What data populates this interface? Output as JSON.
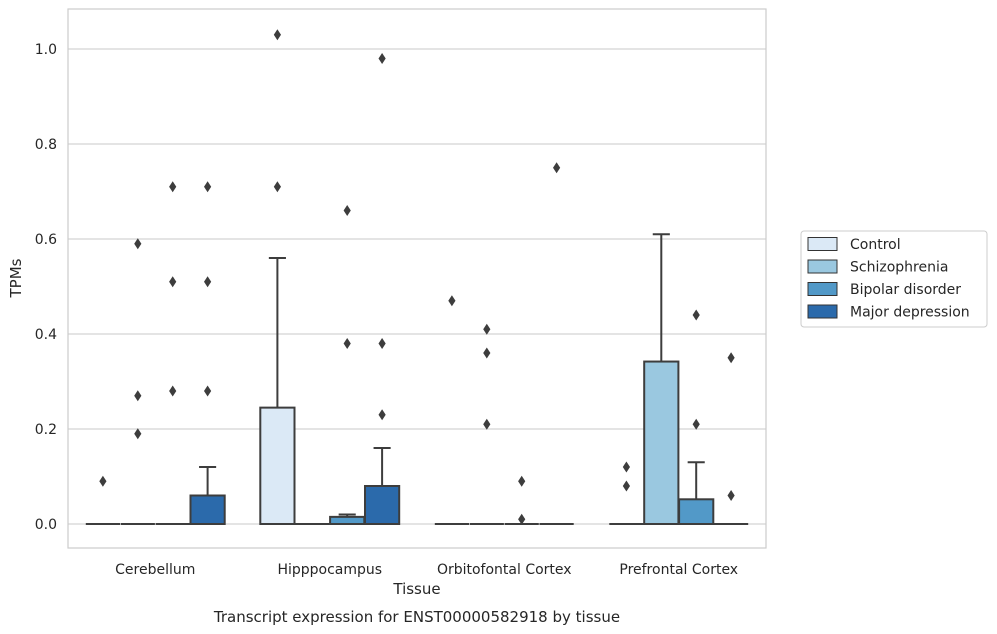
{
  "caption": "Transcript expression for ENST00000582918 by tissue",
  "chart_data": {
    "type": "box",
    "xlabel": "Tissue",
    "ylabel": "TPMs",
    "ylim": [
      -0.05,
      1.08
    ],
    "yticks": [
      "0.0",
      "0.2",
      "0.4",
      "0.6",
      "0.8",
      "1.0"
    ],
    "grid": "horizontal",
    "legend_position": "right",
    "categories": [
      "Cerebellum",
      "Hipppocampus",
      "Orbitofontal Cortex",
      "Prefrontal Cortex"
    ],
    "series": [
      {
        "name": "Control",
        "color": "#dbe9f6",
        "boxes": [
          {
            "q1": 0,
            "median": 0,
            "q3": 0,
            "whisker_low": 0,
            "whisker_high": 0,
            "outliers": [
              0.09
            ]
          },
          {
            "q1": 0,
            "median": 0,
            "q3": 0.245,
            "whisker_low": 0,
            "whisker_high": 0.56,
            "outliers": [
              0.71,
              1.03
            ]
          },
          {
            "q1": 0,
            "median": 0,
            "q3": 0,
            "whisker_low": 0,
            "whisker_high": 0,
            "outliers": [
              0.47
            ]
          },
          {
            "q1": 0,
            "median": 0,
            "q3": 0,
            "whisker_low": 0,
            "whisker_high": 0,
            "outliers": [
              0.08,
              0.12
            ]
          }
        ]
      },
      {
        "name": "Schizophrenia",
        "color": "#9ac8e0",
        "boxes": [
          {
            "q1": 0,
            "median": 0,
            "q3": 0,
            "whisker_low": 0,
            "whisker_high": 0,
            "outliers": [
              0.19,
              0.27,
              0.59
            ]
          },
          {
            "q1": 0,
            "median": 0,
            "q3": 0,
            "whisker_low": 0,
            "whisker_high": 0,
            "outliers": []
          },
          {
            "q1": 0,
            "median": 0,
            "q3": 0,
            "whisker_low": 0,
            "whisker_high": 0,
            "outliers": [
              0.21,
              0.36,
              0.41
            ]
          },
          {
            "q1": 0,
            "median": 0,
            "q3": 0.342,
            "whisker_low": 0,
            "whisker_high": 0.61,
            "outliers": []
          }
        ]
      },
      {
        "name": "Bipolar disorder",
        "color": "#5299c8",
        "boxes": [
          {
            "q1": 0,
            "median": 0,
            "q3": 0,
            "whisker_low": 0,
            "whisker_high": 0,
            "outliers": [
              0.28,
              0.51,
              0.71
            ]
          },
          {
            "q1": 0,
            "median": 0,
            "q3": 0.015,
            "whisker_low": 0,
            "whisker_high": 0.02,
            "outliers": [
              0.38,
              0.66
            ]
          },
          {
            "q1": 0,
            "median": 0,
            "q3": 0,
            "whisker_low": 0,
            "whisker_high": 0,
            "outliers": [
              0.01,
              0.09
            ]
          },
          {
            "q1": 0,
            "median": 0,
            "q3": 0.052,
            "whisker_low": 0,
            "whisker_high": 0.13,
            "outliers": [
              0.21,
              0.44
            ]
          }
        ]
      },
      {
        "name": "Major depression",
        "color": "#2b6aab",
        "boxes": [
          {
            "q1": 0,
            "median": 0,
            "q3": 0.06,
            "whisker_low": 0,
            "whisker_high": 0.12,
            "outliers": [
              0.28,
              0.51,
              0.71
            ]
          },
          {
            "q1": 0,
            "median": 0,
            "q3": 0.08,
            "whisker_low": 0,
            "whisker_high": 0.16,
            "outliers": [
              0.23,
              0.38,
              0.98
            ]
          },
          {
            "q1": 0,
            "median": 0,
            "q3": 0,
            "whisker_low": 0,
            "whisker_high": 0,
            "outliers": [
              0.75
            ]
          },
          {
            "q1": 0,
            "median": 0,
            "q3": 0,
            "whisker_low": 0,
            "whisker_high": 0,
            "outliers": [
              0.06,
              0.35
            ]
          }
        ]
      }
    ]
  }
}
